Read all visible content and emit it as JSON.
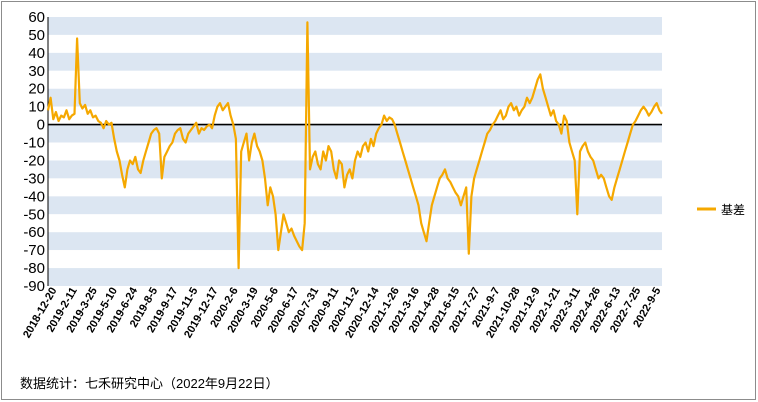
{
  "source_note": "数据统计：七禾研究中心（2022年9月22日）",
  "chart_data": {
    "type": "line",
    "title": "",
    "xlabel": "",
    "ylabel": "",
    "ylim": [
      -90,
      60
    ],
    "yticks": [
      60,
      50,
      40,
      30,
      20,
      10,
      0,
      -10,
      -20,
      -30,
      -40,
      -50,
      -60,
      -70,
      -80,
      -90
    ],
    "x_tick_labels": [
      "2018-12-20",
      "2019-2-11",
      "2019-3-25",
      "2019-5-10",
      "2019-6-24",
      "2019-8-5",
      "2019-9-17",
      "2019-11-5",
      "2019-12-17",
      "2020-2-6",
      "2020-3-19",
      "2020-5-6",
      "2020-6-17",
      "2020-7-31",
      "2020-9-11",
      "2020-11-2",
      "2020-12-14",
      "2021-1-26",
      "2021-3-16",
      "2021-4-28",
      "2021-6-15",
      "2021-7-27",
      "2021-9-7",
      "2021-10-28",
      "2021-12-9",
      "2022-1-21",
      "2022-3-11",
      "2022-4-26",
      "2022-6-13",
      "2022-7-25",
      "2022-9-5"
    ],
    "band_colors": [
      "#dce6f2",
      "#ffffff"
    ],
    "zero_line": true,
    "legend_position": "right",
    "series": [
      {
        "name": "基差",
        "color": "#f5a800",
        "values": [
          8,
          15,
          3,
          7,
          2,
          5,
          4,
          8,
          3,
          5,
          6,
          48,
          12,
          9,
          11,
          6,
          8,
          4,
          5,
          2,
          1,
          -2,
          2,
          0,
          1,
          -8,
          -15,
          -20,
          -28,
          -35,
          -25,
          -20,
          -22,
          -18,
          -25,
          -27,
          -20,
          -15,
          -10,
          -5,
          -3,
          -2,
          -5,
          -30,
          -18,
          -15,
          -12,
          -10,
          -5,
          -3,
          -2,
          -8,
          -10,
          -5,
          -3,
          -1,
          1,
          -5,
          -2,
          -3,
          -1,
          0,
          -2,
          5,
          10,
          12,
          8,
          10,
          12,
          5,
          0,
          -8,
          -80,
          -15,
          -10,
          -5,
          -20,
          -10,
          -5,
          -12,
          -15,
          -20,
          -30,
          -45,
          -35,
          -40,
          -50,
          -70,
          -60,
          -50,
          -55,
          -60,
          -58,
          -62,
          -65,
          -68,
          -70,
          -55,
          57,
          -25,
          -18,
          -15,
          -22,
          -25,
          -15,
          -20,
          -12,
          -15,
          -25,
          -30,
          -20,
          -22,
          -35,
          -28,
          -25,
          -30,
          -20,
          -15,
          -18,
          -12,
          -10,
          -15,
          -8,
          -12,
          -5,
          -2,
          0,
          5,
          2,
          4,
          3,
          0,
          -5,
          -10,
          -15,
          -20,
          -25,
          -30,
          -35,
          -40,
          -45,
          -55,
          -60,
          -65,
          -55,
          -45,
          -40,
          -35,
          -30,
          -28,
          -25,
          -30,
          -32,
          -35,
          -38,
          -40,
          -45,
          -40,
          -35,
          -72,
          -40,
          -30,
          -25,
          -20,
          -15,
          -10,
          -5,
          -3,
          0,
          2,
          5,
          8,
          3,
          5,
          10,
          12,
          8,
          10,
          5,
          8,
          10,
          15,
          12,
          15,
          20,
          25,
          28,
          20,
          15,
          10,
          5,
          8,
          2,
          0,
          -5,
          5,
          2,
          -10,
          -15,
          -20,
          -50,
          -15,
          -12,
          -10,
          -15,
          -18,
          -20,
          -25,
          -30,
          -28,
          -30,
          -35,
          -40,
          -42,
          -35,
          -30,
          -25,
          -20,
          -15,
          -10,
          -5,
          0,
          2,
          5,
          8,
          10,
          8,
          5,
          7,
          10,
          12,
          8,
          6
        ]
      }
    ]
  }
}
